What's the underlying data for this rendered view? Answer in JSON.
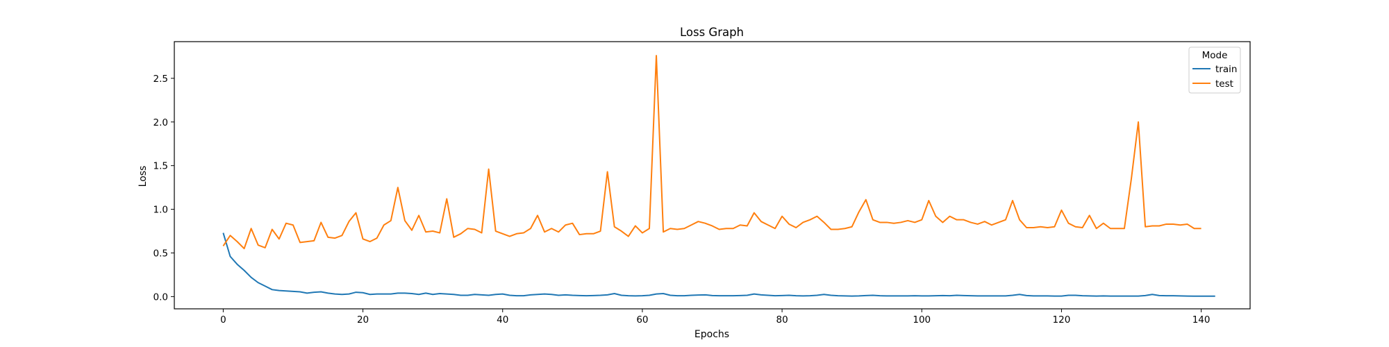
{
  "chart_data": {
    "type": "line",
    "title": "Loss Graph",
    "xlabel": "Epochs",
    "ylabel": "Loss",
    "xlim": [
      -7,
      147
    ],
    "ylim": [
      -0.14,
      2.92
    ],
    "xticks": [
      0,
      20,
      40,
      60,
      80,
      100,
      120,
      140
    ],
    "yticks": [
      0.0,
      0.5,
      1.0,
      1.5,
      2.0,
      2.5
    ],
    "grid": false,
    "legend": {
      "title": "Mode",
      "placement": "top-right"
    },
    "series": [
      {
        "name": "train",
        "color": "#1f77b4",
        "values": [
          0.73,
          0.46,
          0.37,
          0.3,
          0.22,
          0.16,
          0.12,
          0.08,
          0.07,
          0.065,
          0.06,
          0.055,
          0.04,
          0.05,
          0.055,
          0.04,
          0.03,
          0.025,
          0.03,
          0.05,
          0.045,
          0.025,
          0.03,
          0.03,
          0.03,
          0.04,
          0.04,
          0.035,
          0.025,
          0.04,
          0.025,
          0.035,
          0.03,
          0.025,
          0.015,
          0.015,
          0.025,
          0.02,
          0.015,
          0.025,
          0.03,
          0.015,
          0.01,
          0.01,
          0.02,
          0.025,
          0.03,
          0.025,
          0.015,
          0.02,
          0.015,
          0.012,
          0.01,
          0.012,
          0.015,
          0.02,
          0.035,
          0.015,
          0.01,
          0.008,
          0.01,
          0.015,
          0.03,
          0.035,
          0.015,
          0.01,
          0.01,
          0.015,
          0.018,
          0.02,
          0.012,
          0.01,
          0.01,
          0.01,
          0.012,
          0.015,
          0.03,
          0.02,
          0.015,
          0.01,
          0.012,
          0.015,
          0.01,
          0.008,
          0.01,
          0.015,
          0.025,
          0.015,
          0.01,
          0.008,
          0.006,
          0.008,
          0.012,
          0.015,
          0.01,
          0.008,
          0.008,
          0.008,
          0.008,
          0.01,
          0.008,
          0.008,
          0.01,
          0.012,
          0.01,
          0.015,
          0.012,
          0.01,
          0.008,
          0.008,
          0.008,
          0.008,
          0.008,
          0.015,
          0.025,
          0.012,
          0.008,
          0.008,
          0.008,
          0.006,
          0.006,
          0.015,
          0.015,
          0.01,
          0.008,
          0.006,
          0.008,
          0.006,
          0.006,
          0.006,
          0.006,
          0.006,
          0.012,
          0.025,
          0.012,
          0.01,
          0.01,
          0.008,
          0.006,
          0.005,
          0.005,
          0.005,
          0.005
        ]
      },
      {
        "name": "test",
        "color": "#ff7f0e",
        "values": [
          0.58,
          0.7,
          0.63,
          0.55,
          0.78,
          0.59,
          0.56,
          0.77,
          0.66,
          0.84,
          0.82,
          0.62,
          0.63,
          0.64,
          0.85,
          0.68,
          0.67,
          0.7,
          0.86,
          0.96,
          0.66,
          0.63,
          0.67,
          0.82,
          0.87,
          1.25,
          0.87,
          0.76,
          0.93,
          0.74,
          0.75,
          0.73,
          1.12,
          0.68,
          0.72,
          0.78,
          0.77,
          0.73,
          1.46,
          0.75,
          0.72,
          0.69,
          0.72,
          0.73,
          0.78,
          0.93,
          0.74,
          0.78,
          0.74,
          0.82,
          0.84,
          0.71,
          0.72,
          0.72,
          0.75,
          1.43,
          0.8,
          0.75,
          0.69,
          0.81,
          0.73,
          0.78,
          2.76,
          0.74,
          0.78,
          0.77,
          0.78,
          0.82,
          0.86,
          0.84,
          0.81,
          0.77,
          0.78,
          0.78,
          0.82,
          0.81,
          0.96,
          0.86,
          0.82,
          0.78,
          0.92,
          0.83,
          0.79,
          0.85,
          0.88,
          0.92,
          0.85,
          0.77,
          0.77,
          0.78,
          0.8,
          0.97,
          1.11,
          0.88,
          0.85,
          0.85,
          0.84,
          0.85,
          0.87,
          0.85,
          0.88,
          1.1,
          0.92,
          0.85,
          0.92,
          0.88,
          0.88,
          0.85,
          0.83,
          0.86,
          0.82,
          0.85,
          0.88,
          1.1,
          0.88,
          0.79,
          0.79,
          0.8,
          0.79,
          0.8,
          0.99,
          0.84,
          0.8,
          0.79,
          0.93,
          0.78,
          0.84,
          0.78,
          0.78,
          0.78,
          1.35,
          2.0,
          0.8,
          0.81,
          0.81,
          0.83,
          0.83,
          0.82,
          0.83,
          0.78,
          0.78
        ]
      }
    ]
  }
}
